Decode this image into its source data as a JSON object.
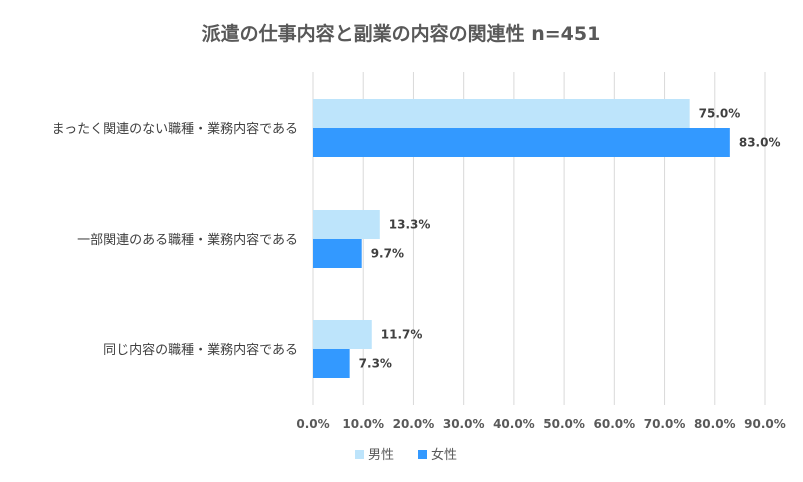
{
  "chart_data": {
    "type": "bar",
    "orientation": "horizontal",
    "title": "派遣の仕事内容と副業の内容の関連性 n=451",
    "categories": [
      "まったく関連のない職種・業務内容である",
      "一部関連のある職種・業務内容である",
      "同じ内容の職種・業務内容である"
    ],
    "series": [
      {
        "name": "男性",
        "color": "#bde4fb",
        "values": [
          75.0,
          13.3,
          11.7
        ]
      },
      {
        "name": "女性",
        "color": "#3399ff",
        "values": [
          83.0,
          9.7,
          7.3
        ]
      }
    ],
    "xlim": [
      0,
      90
    ],
    "xticks": [
      0,
      10,
      20,
      30,
      40,
      50,
      60,
      70,
      80,
      90
    ],
    "tick_suffix": "%",
    "value_format": "0.0%",
    "grid": true,
    "legend_position": "bottom"
  }
}
